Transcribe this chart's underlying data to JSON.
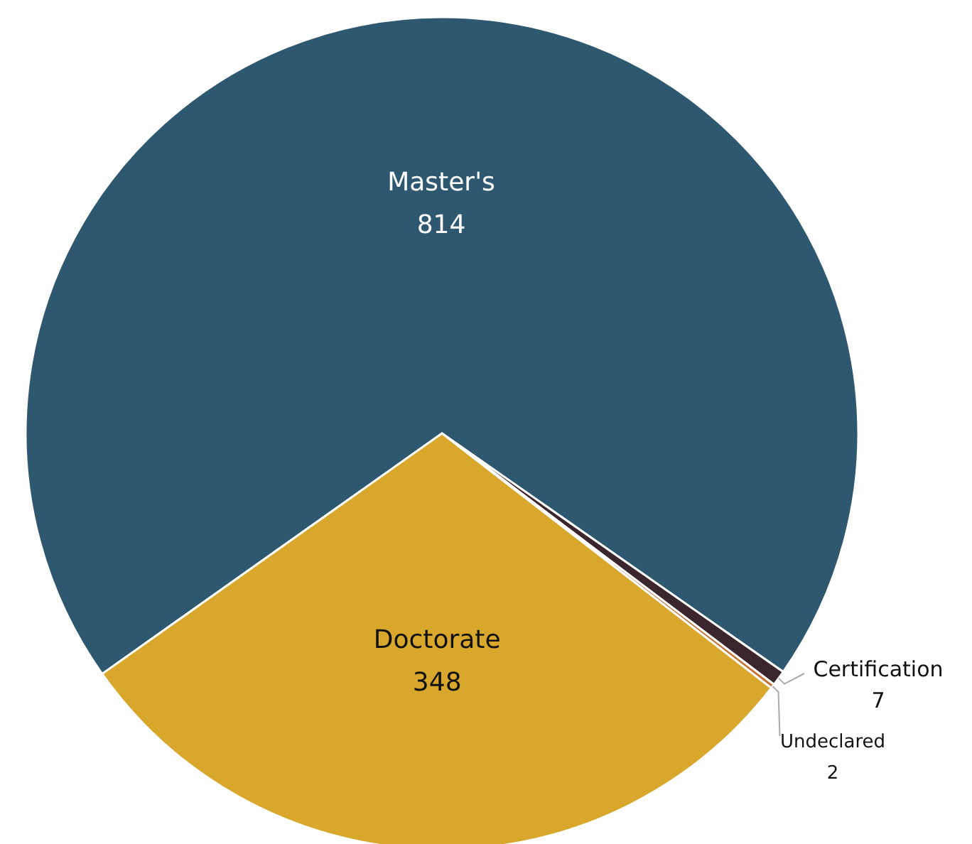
{
  "chart_data": {
    "type": "pie",
    "categories": [
      "Master's",
      "Doctorate",
      "Certification",
      "Undeclared"
    ],
    "values": [
      814,
      348,
      7,
      2
    ],
    "colors": [
      "#2e5770",
      "#d9a72b",
      "#3a262c",
      "#c8702e"
    ],
    "data_labels": true
  }
}
